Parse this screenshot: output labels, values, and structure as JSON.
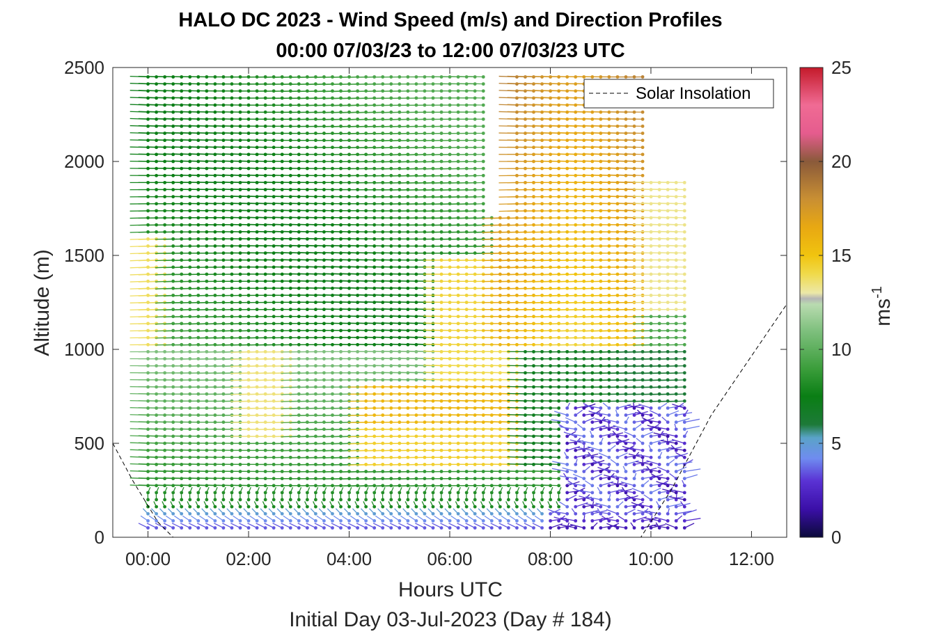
{
  "chart_data": {
    "type": "wind_barb_profile",
    "title": "HALO DC 2023 - Wind Speed (m/s) and Direction Profiles",
    "subtitle": "00:00 07/03/23 to 12:00 07/03/23  UTC",
    "xlabel": "Hours UTC",
    "xlabel2": "Initial Day 03-Jul-2023 (Day # 184)",
    "ylabel": "Altitude (m)",
    "xlim_hours": [
      -0.7,
      12.7
    ],
    "ylim": [
      0,
      2500
    ],
    "x_ticks": [
      {
        "value": 0,
        "label": "00:00"
      },
      {
        "value": 2,
        "label": "02:00"
      },
      {
        "value": 4,
        "label": "04:00"
      },
      {
        "value": 6,
        "label": "06:00"
      },
      {
        "value": 8,
        "label": "08:00"
      },
      {
        "value": 10,
        "label": "10:00"
      },
      {
        "value": 12,
        "label": "12:00"
      }
    ],
    "y_ticks": [
      0,
      500,
      1000,
      1500,
      2000,
      2500
    ],
    "colorbar": {
      "label": "ms",
      "label_superscript": "-1",
      "range": [
        0,
        25
      ],
      "ticks": [
        0,
        5,
        10,
        15,
        20,
        25
      ],
      "colormap": [
        [
          0,
          "#0b0a3a"
        ],
        [
          1.5,
          "#3b0fa8"
        ],
        [
          3,
          "#5a32d4"
        ],
        [
          4.2,
          "#6f8cf0"
        ],
        [
          5.3,
          "#5aa3c8"
        ],
        [
          6,
          "#1d7a38"
        ],
        [
          7.5,
          "#0a7e14"
        ],
        [
          9,
          "#3c9e3c"
        ],
        [
          11,
          "#7fc07e"
        ],
        [
          12.4,
          "#b9dbb0"
        ],
        [
          12.7,
          "#b5b5b5"
        ],
        [
          13,
          "#ece8a8"
        ],
        [
          14,
          "#f0da4c"
        ],
        [
          15,
          "#f1c40f"
        ],
        [
          16.5,
          "#e8a812"
        ],
        [
          18,
          "#c98f33"
        ],
        [
          20,
          "#8a5a3a"
        ],
        [
          21.5,
          "#e55c8e"
        ],
        [
          23,
          "#f06b94"
        ],
        [
          25,
          "#c41a2a"
        ]
      ]
    },
    "legend": {
      "entries": [
        "Solar Insolation"
      ],
      "position": "top-right"
    },
    "barb_times_hours": {
      "start": 0,
      "end": 10.8,
      "step": 0.1667
    },
    "barb_altitude_step_m": 25,
    "top_of_profile_m": [
      {
        "t": 0,
        "alt": 2475
      },
      {
        "t": 6.75,
        "alt": 2475
      },
      {
        "t": 6.92,
        "alt": 1700
      },
      {
        "t": 7.17,
        "alt": 2475
      },
      {
        "t": 10.0,
        "alt": 2475
      },
      {
        "t": 10.2,
        "alt": 1900
      },
      {
        "t": 10.8,
        "alt": 1900
      }
    ],
    "regions": [
      {
        "name": "low-level",
        "alt_range": [
          0,
          150
        ],
        "speed": "2-5",
        "color": "blue-purple"
      },
      {
        "name": "boundary layer 00-06",
        "alt_range": [
          150,
          1000
        ],
        "speed": "7-14",
        "color": "green-yellow"
      },
      {
        "name": "yellow jet 04:30-07:30",
        "alt_range": [
          400,
          800
        ],
        "speed": "14-16",
        "color": "yellow-orange"
      },
      {
        "name": "upper green",
        "alt_range": [
          1000,
          2300
        ],
        "speed": "7-11",
        "color": "green"
      },
      {
        "name": "upper yellow 07:00-10:00",
        "alt_range": [
          1000,
          2500
        ],
        "speed": "14-19",
        "color": "yellow-orange-brown"
      },
      {
        "name": "weak flow 08:00-10:30",
        "alt_range": [
          0,
          700
        ],
        "speed": "0-5",
        "color": "dark blue-purple"
      }
    ],
    "solar_insolation_line": [
      {
        "t": -0.7,
        "alt": 500
      },
      {
        "t": -0.3,
        "alt": 300
      },
      {
        "t": 0.2,
        "alt": 80
      },
      {
        "t": 0.5,
        "alt": 0
      },
      {
        "t": 9.8,
        "alt": 0
      },
      {
        "t": 10.4,
        "alt": 250
      },
      {
        "t": 11.2,
        "alt": 650
      },
      {
        "t": 12.7,
        "alt": 1240
      }
    ]
  }
}
